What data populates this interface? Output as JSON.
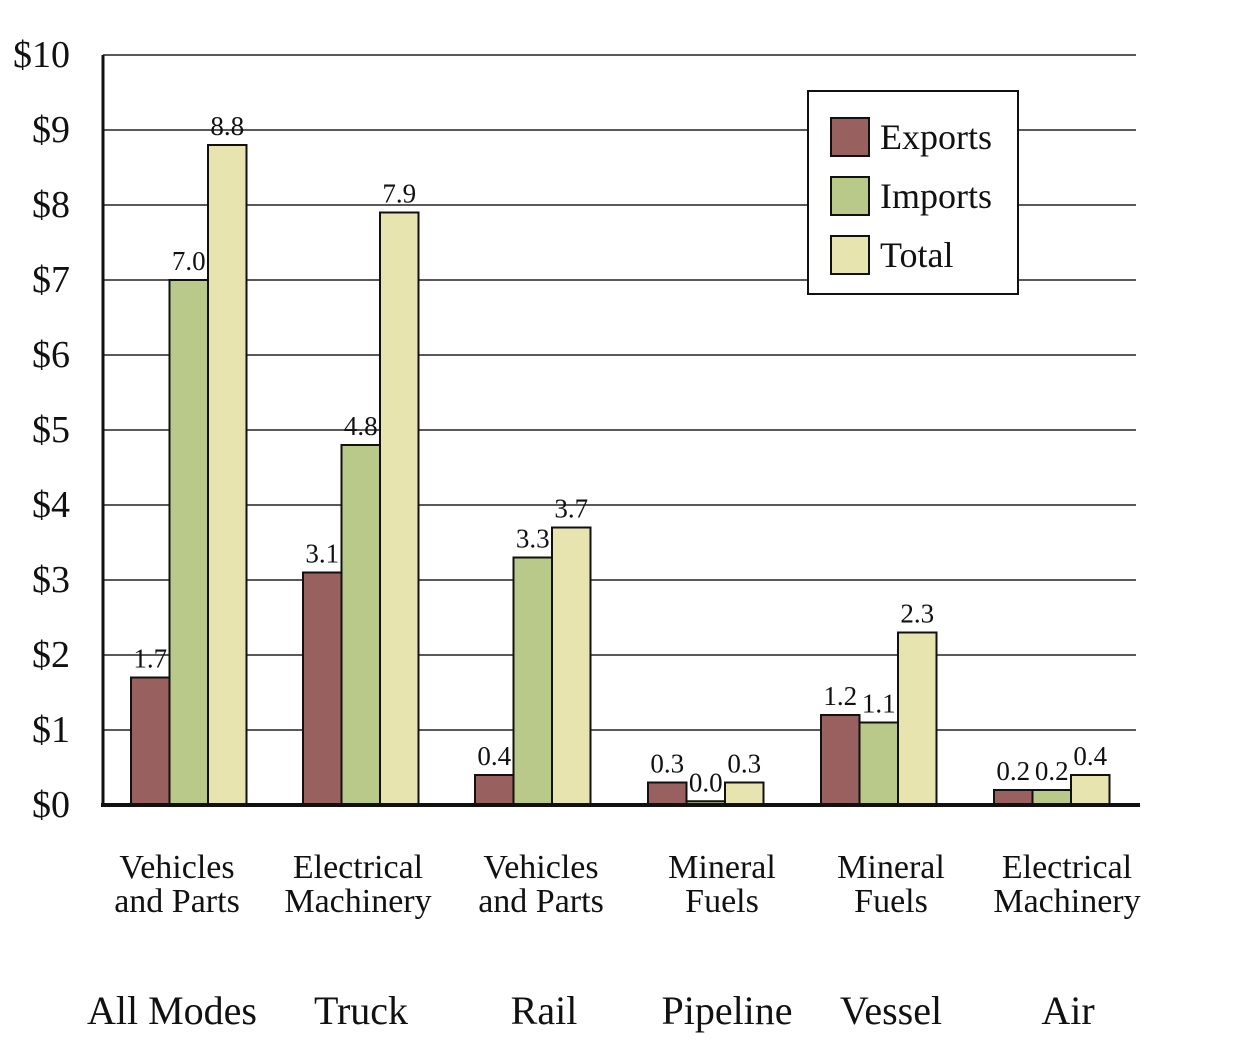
{
  "chart_data": {
    "type": "bar",
    "title": "",
    "xlabel": "",
    "ylabel": "",
    "ylim": [
      0,
      10
    ],
    "yticks": [
      "$0",
      "$1",
      "$2",
      "$3",
      "$4",
      "$5",
      "$6",
      "$7",
      "$8",
      "$9",
      "$10"
    ],
    "grid": true,
    "legend_position": "top-right",
    "groups": [
      {
        "mode": "All Modes",
        "category": [
          "Vehicles",
          "and Parts"
        ]
      },
      {
        "mode": "Truck",
        "category": [
          "Electrical",
          "Machinery"
        ]
      },
      {
        "mode": "Rail",
        "category": [
          "Vehicles",
          "and Parts"
        ]
      },
      {
        "mode": "Pipeline",
        "category": [
          "Mineral",
          "Fuels"
        ]
      },
      {
        "mode": "Vessel",
        "category": [
          "Mineral",
          "Fuels"
        ]
      },
      {
        "mode": "Air",
        "category": [
          "Electrical",
          "Machinery"
        ]
      }
    ],
    "series": [
      {
        "name": "Exports",
        "color": "#98605e",
        "values": [
          1.7,
          3.1,
          0.4,
          0.3,
          1.2,
          0.2
        ],
        "labels": [
          "1.7",
          "3.1",
          "0.4",
          "0.3",
          "1.2",
          "0.2"
        ]
      },
      {
        "name": "Imports",
        "color": "#b8c98a",
        "values": [
          7.0,
          4.8,
          3.3,
          0.05,
          1.1,
          0.2
        ],
        "labels": [
          "7.0",
          "4.8",
          "3.3",
          "0.0",
          "1.1",
          "0.2"
        ]
      },
      {
        "name": "Total",
        "color": "#e8e4b0",
        "values": [
          8.8,
          7.9,
          3.7,
          0.3,
          2.3,
          0.4
        ],
        "labels": [
          "8.8",
          "7.9",
          "3.7",
          "0.3",
          "2.3",
          "0.4"
        ]
      }
    ]
  }
}
